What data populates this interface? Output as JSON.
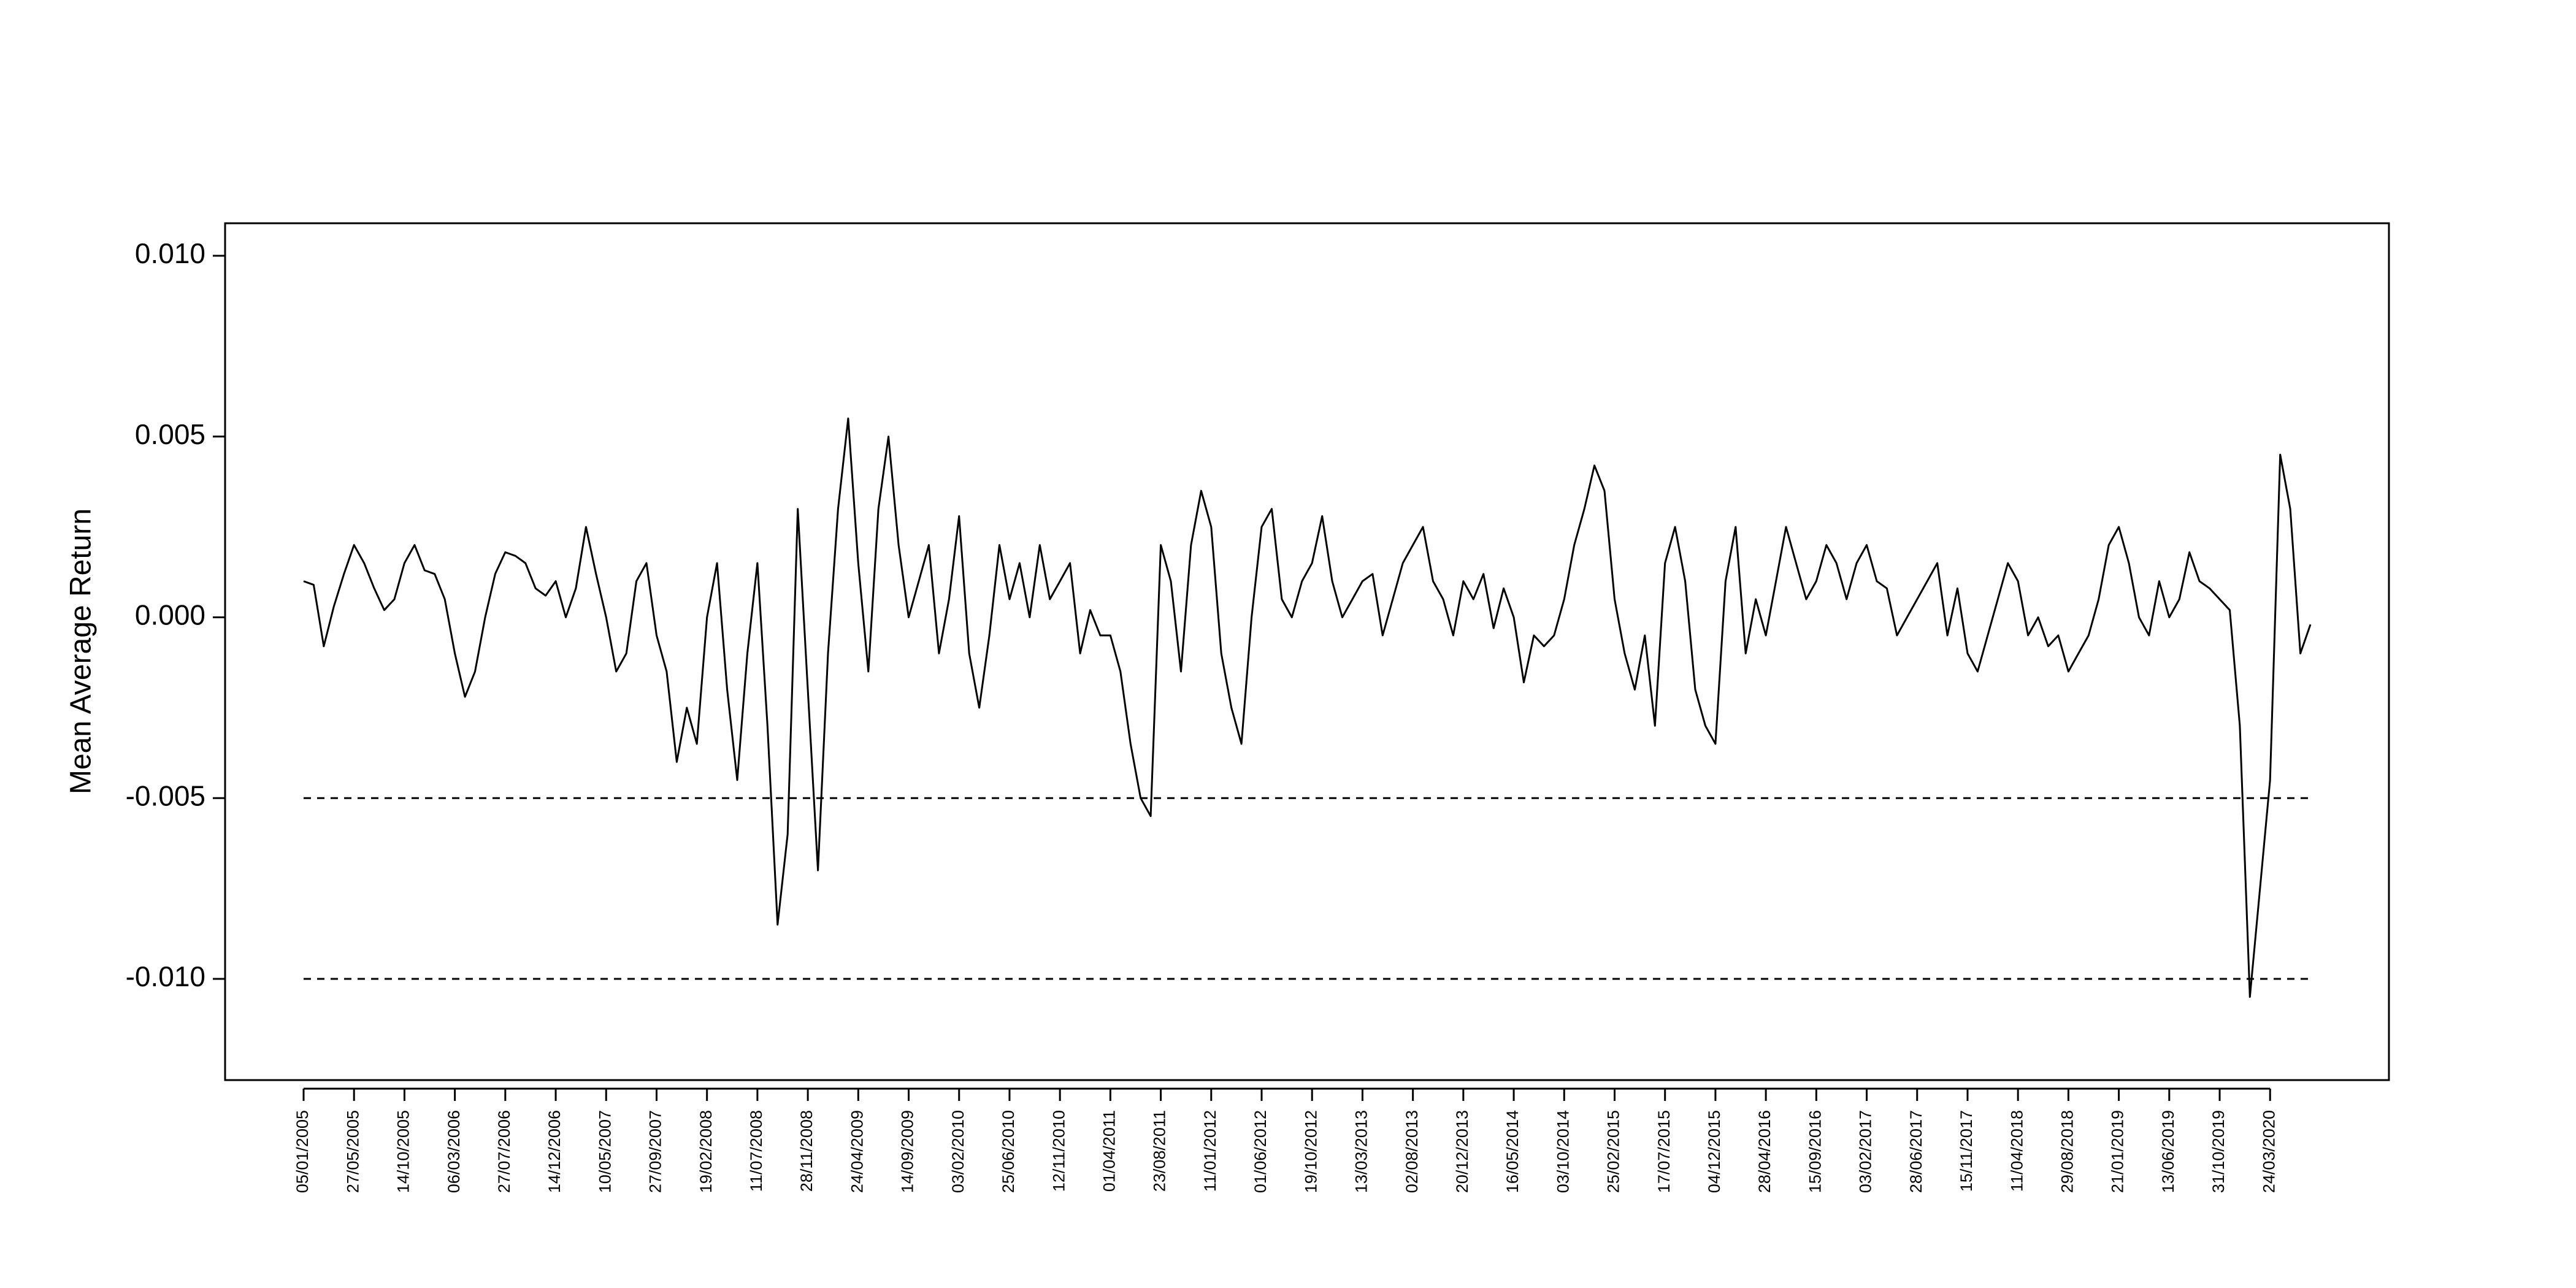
{
  "chart_data": {
    "type": "line",
    "y_axis_label": "Mean Average Return",
    "ylim": [
      -0.0128,
      0.0109
    ],
    "yticks": [
      {
        "value": -0.01,
        "label": "-0.010"
      },
      {
        "value": -0.005,
        "label": "-0.005"
      },
      {
        "value": 0,
        "label": "0.000"
      },
      {
        "value": 0.005,
        "label": "0.005"
      },
      {
        "value": 0.01,
        "label": "0.010"
      }
    ],
    "reference_lines": [
      -0.005,
      -0.01
    ],
    "categories": [
      "05/01/2005",
      null,
      null,
      null,
      null,
      "27/05/2005",
      null,
      null,
      null,
      null,
      "14/10/2005",
      null,
      null,
      null,
      null,
      "06/03/2006",
      null,
      null,
      null,
      null,
      "27/07/2006",
      null,
      null,
      null,
      null,
      "14/12/2006",
      null,
      null,
      null,
      null,
      "10/05/2007",
      null,
      null,
      null,
      null,
      "27/09/2007",
      null,
      null,
      null,
      null,
      "19/02/2008",
      null,
      null,
      null,
      null,
      "11/07/2008",
      null,
      null,
      null,
      null,
      "28/11/2008",
      null,
      null,
      null,
      null,
      "24/04/2009",
      null,
      null,
      null,
      null,
      "14/09/2009",
      null,
      null,
      null,
      null,
      "03/02/2010",
      null,
      null,
      null,
      null,
      "25/06/2010",
      null,
      null,
      null,
      null,
      "12/11/2010",
      null,
      null,
      null,
      null,
      "01/04/2011",
      null,
      null,
      null,
      null,
      "23/08/2011",
      null,
      null,
      null,
      null,
      "11/01/2012",
      null,
      null,
      null,
      null,
      "01/06/2012",
      null,
      null,
      null,
      null,
      "19/10/2012",
      null,
      null,
      null,
      null,
      "13/03/2013",
      null,
      null,
      null,
      null,
      "02/08/2013",
      null,
      null,
      null,
      null,
      "20/12/2013",
      null,
      null,
      null,
      null,
      "16/05/2014",
      null,
      null,
      null,
      null,
      "03/10/2014",
      null,
      null,
      null,
      null,
      "25/02/2015",
      null,
      null,
      null,
      null,
      "17/07/2015",
      null,
      null,
      null,
      null,
      "04/12/2015",
      null,
      null,
      null,
      null,
      "28/04/2016",
      null,
      null,
      null,
      null,
      "15/09/2016",
      null,
      null,
      null,
      null,
      "03/02/2017",
      null,
      null,
      null,
      null,
      "28/06/2017",
      null,
      null,
      null,
      null,
      "15/11/2017",
      null,
      null,
      null,
      null,
      "11/04/2018",
      null,
      null,
      null,
      null,
      "29/08/2018",
      null,
      null,
      null,
      null,
      "21/01/2019",
      null,
      null,
      null,
      null,
      "13/06/2019",
      null,
      null,
      null,
      null,
      "31/10/2019",
      null,
      null,
      null,
      null,
      "24/03/2020",
      null,
      null,
      null,
      null
    ],
    "series": [
      {
        "name": "Mean Average Return",
        "color": "#000000",
        "values": [
          0.001,
          0.0009,
          -0.0008,
          0.0003,
          0.0012,
          0.002,
          0.0015,
          0.0008,
          0.0002,
          0.0005,
          0.0015,
          0.002,
          0.0013,
          0.0012,
          0.0005,
          -0.001,
          -0.0022,
          -0.0015,
          0.0,
          0.0012,
          0.0018,
          0.0017,
          0.0015,
          0.0008,
          0.0006,
          0.001,
          0.0,
          0.0008,
          0.0025,
          0.0012,
          0.0,
          -0.0015,
          -0.001,
          0.001,
          0.0015,
          -0.0005,
          -0.0015,
          -0.004,
          -0.0025,
          -0.0035,
          0.0,
          0.0015,
          -0.002,
          -0.0045,
          -0.001,
          0.0015,
          -0.003,
          -0.0085,
          -0.006,
          0.003,
          -0.002,
          -0.007,
          -0.001,
          0.003,
          0.0055,
          0.0015,
          -0.0015,
          0.003,
          0.005,
          0.002,
          0.0,
          0.001,
          0.002,
          -0.001,
          0.0005,
          0.0028,
          -0.001,
          -0.0025,
          -0.0005,
          0.002,
          0.0005,
          0.0015,
          0.0,
          0.002,
          0.0005,
          0.001,
          0.0015,
          -0.001,
          0.0002,
          -0.0005,
          -0.0005,
          -0.0015,
          -0.0035,
          -0.005,
          -0.0055,
          0.002,
          0.001,
          -0.0015,
          0.002,
          0.0035,
          0.0025,
          -0.001,
          -0.0025,
          -0.0035,
          0.0,
          0.0025,
          0.003,
          0.0005,
          0.0,
          0.001,
          0.0015,
          0.0028,
          0.001,
          0.0,
          0.0005,
          0.001,
          0.0012,
          -0.0005,
          0.0005,
          0.0015,
          0.002,
          0.0025,
          0.001,
          0.0005,
          -0.0005,
          0.001,
          0.0005,
          0.0012,
          -0.0003,
          0.0008,
          0.0,
          -0.0018,
          -0.0005,
          -0.0008,
          -0.0005,
          0.0005,
          0.002,
          0.003,
          0.0042,
          0.0035,
          0.0005,
          -0.001,
          -0.002,
          -0.0005,
          -0.003,
          0.0015,
          0.0025,
          0.001,
          -0.002,
          -0.003,
          -0.0035,
          0.001,
          0.0025,
          -0.001,
          0.0005,
          -0.0005,
          0.001,
          0.0025,
          0.0015,
          0.0005,
          0.001,
          0.002,
          0.0015,
          0.0005,
          0.0015,
          0.002,
          0.001,
          0.0008,
          -0.0005,
          0.0,
          0.0005,
          0.001,
          0.0015,
          -0.0005,
          0.0008,
          -0.001,
          -0.0015,
          -0.0005,
          0.0005,
          0.0015,
          0.001,
          -0.0005,
          0.0,
          -0.0008,
          -0.0005,
          -0.0015,
          -0.001,
          -0.0005,
          0.0005,
          0.002,
          0.0025,
          0.0015,
          0.0,
          -0.0005,
          0.001,
          0.0,
          0.0005,
          0.0018,
          0.001,
          0.0008,
          0.0005,
          0.0002,
          -0.003,
          -0.0105,
          -0.0075,
          -0.0045,
          0.0045,
          0.003,
          -0.001,
          -0.0002
        ]
      }
    ]
  }
}
